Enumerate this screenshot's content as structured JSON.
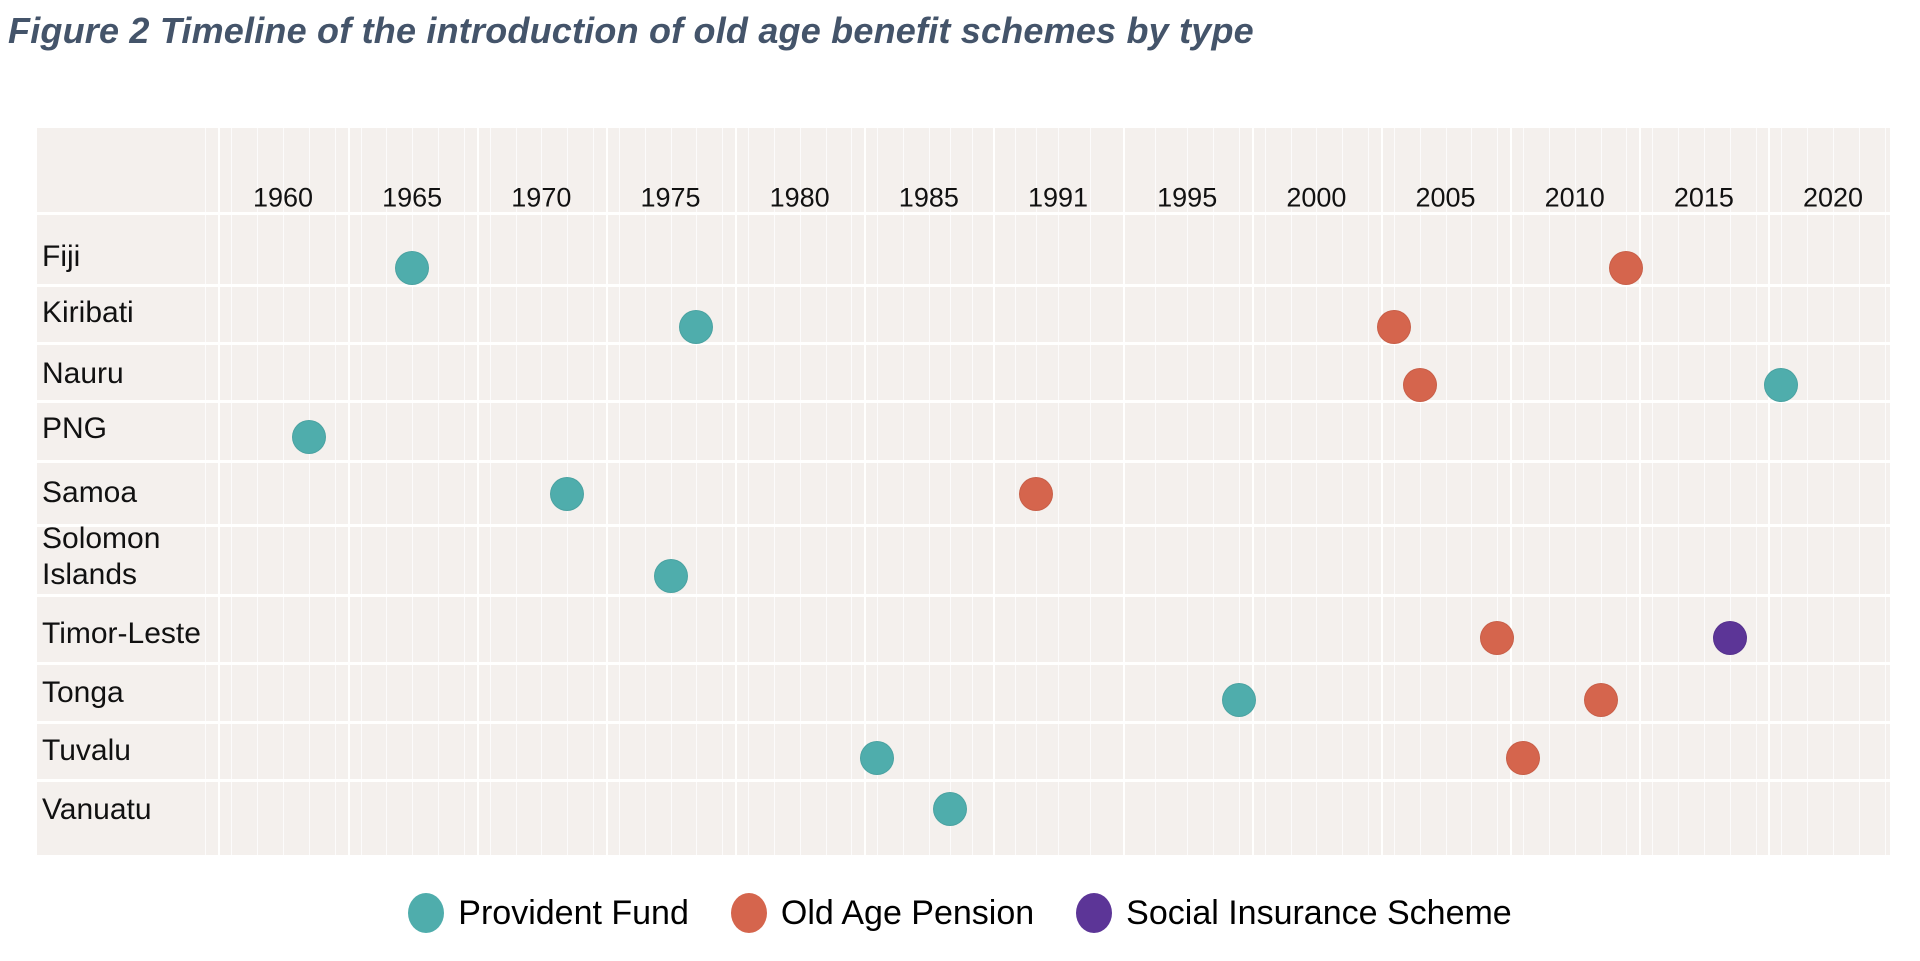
{
  "figure_title": "Figure 2 Timeline of the introduction of old age benefit schemes by type",
  "chart_data": {
    "type": "scatter",
    "title": "Figure 2 Timeline of the introduction of old age benefit schemes by type",
    "xlabel": "",
    "ylabel": "",
    "x_tick_labels": [
      "1960",
      "1965",
      "1970",
      "1975",
      "1980",
      "1985",
      "1991",
      "1995",
      "2000",
      "2005",
      "2010",
      "2015",
      "2020"
    ],
    "x_tick_years": [
      1960,
      1965,
      1970,
      1975,
      1980,
      1985,
      1991,
      1995,
      2000,
      2005,
      2010,
      2015,
      2020
    ],
    "x_range_years": [
      1957,
      2022
    ],
    "grid": true,
    "panel_bg": "#f4f0ed",
    "gridline_color": "#ffffff",
    "categories": [
      "Fiji",
      "Kiribati",
      "Nauru",
      "PNG",
      "Samoa",
      "Solomon Islands",
      "Timor-Leste",
      "Tonga",
      "Tuvalu",
      "Vanuatu"
    ],
    "legend_position": "bottom",
    "series": [
      {
        "name": "Provident Fund",
        "color": "#4fadac",
        "points": [
          {
            "country": "Fiji",
            "year": 1965
          },
          {
            "country": "Kiribati",
            "year": 1976
          },
          {
            "country": "Nauru",
            "year": 2018
          },
          {
            "country": "PNG",
            "year": 1961
          },
          {
            "country": "Samoa",
            "year": 1971
          },
          {
            "country": "Solomon Islands",
            "year": 1975
          },
          {
            "country": "Tonga",
            "year": 1997
          },
          {
            "country": "Tuvalu",
            "year": 1983
          },
          {
            "country": "Vanuatu",
            "year": 1986
          }
        ]
      },
      {
        "name": "Old Age Pension",
        "color": "#d5654d",
        "points": [
          {
            "country": "Fiji",
            "year": 2012
          },
          {
            "country": "Kiribati",
            "year": 2003
          },
          {
            "country": "Nauru",
            "year": 2004
          },
          {
            "country": "Samoa",
            "year": 1990
          },
          {
            "country": "Timor-Leste",
            "year": 2007
          },
          {
            "country": "Tonga",
            "year": 2011
          },
          {
            "country": "Tuvalu",
            "year": 2008
          }
        ]
      },
      {
        "name": "Social Insurance Scheme",
        "color": "#5c3597",
        "points": [
          {
            "country": "Timor-Leste",
            "year": 2016
          }
        ]
      }
    ],
    "legend": [
      "Provident Fund",
      "Old Age Pension",
      "Social Insurance Scheme"
    ]
  }
}
